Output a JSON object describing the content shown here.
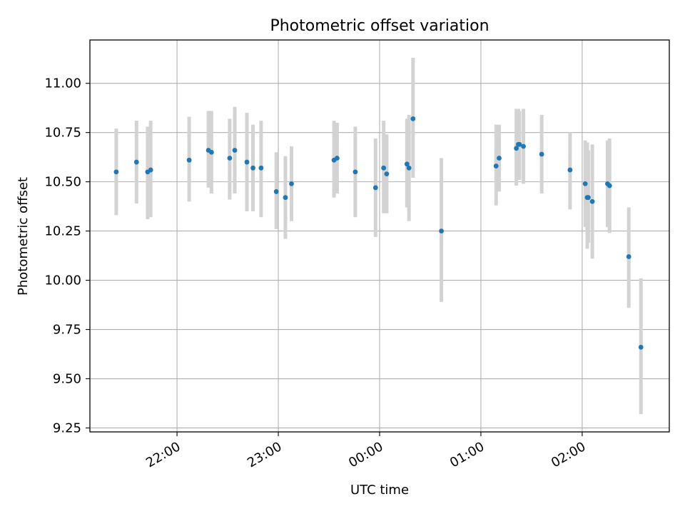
{
  "chart_data": {
    "type": "scatter",
    "title": "Photometric offset variation",
    "xlabel": "UTC time",
    "ylabel": "Photometric offset",
    "x_unit": "UTC time (HH:MM, hours past 00:00 of second day; negative = previous evening)",
    "x_ticks": [
      {
        "value": -2.0,
        "label": "22:00"
      },
      {
        "value": -1.0,
        "label": "23:00"
      },
      {
        "value": 0.0,
        "label": "00:00"
      },
      {
        "value": 1.0,
        "label": "01:00"
      },
      {
        "value": 2.0,
        "label": "02:00"
      }
    ],
    "y_ticks": [
      {
        "value": 9.25,
        "label": "9.25"
      },
      {
        "value": 9.5,
        "label": "9.50"
      },
      {
        "value": 9.75,
        "label": "9.75"
      },
      {
        "value": 10.0,
        "label": "10.00"
      },
      {
        "value": 10.25,
        "label": "10.25"
      },
      {
        "value": 10.5,
        "label": "10.50"
      },
      {
        "value": 10.75,
        "label": "10.75"
      },
      {
        "value": 11.0,
        "label": "11.00"
      }
    ],
    "xlim": [
      -2.86,
      2.86
    ],
    "ylim": [
      9.23,
      11.22
    ],
    "grid": true,
    "point_color": "#1f77b4",
    "errorbar_color": "#d3d3d3",
    "series": [
      {
        "points": [
          {
            "x": -2.6,
            "y": 10.55,
            "lo": 10.33,
            "hi": 10.77
          },
          {
            "x": -2.4,
            "y": 10.6,
            "lo": 10.39,
            "hi": 10.81
          },
          {
            "x": -2.29,
            "y": 10.55,
            "lo": 10.31,
            "hi": 10.78
          },
          {
            "x": -2.26,
            "y": 10.56,
            "lo": 10.32,
            "hi": 10.81
          },
          {
            "x": -1.88,
            "y": 10.61,
            "lo": 10.4,
            "hi": 10.83
          },
          {
            "x": -1.69,
            "y": 10.66,
            "lo": 10.47,
            "hi": 10.86
          },
          {
            "x": -1.66,
            "y": 10.65,
            "lo": 10.44,
            "hi": 10.86
          },
          {
            "x": -1.48,
            "y": 10.62,
            "lo": 10.41,
            "hi": 10.82
          },
          {
            "x": -1.43,
            "y": 10.66,
            "lo": 10.44,
            "hi": 10.88
          },
          {
            "x": -1.31,
            "y": 10.6,
            "lo": 10.35,
            "hi": 10.85
          },
          {
            "x": -1.25,
            "y": 10.57,
            "lo": 10.35,
            "hi": 10.79
          },
          {
            "x": -1.17,
            "y": 10.57,
            "lo": 10.32,
            "hi": 10.81
          },
          {
            "x": -1.02,
            "y": 10.45,
            "lo": 10.26,
            "hi": 10.65
          },
          {
            "x": -0.93,
            "y": 10.42,
            "lo": 10.21,
            "hi": 10.63
          },
          {
            "x": -0.87,
            "y": 10.49,
            "lo": 10.3,
            "hi": 10.68
          },
          {
            "x": -0.45,
            "y": 10.61,
            "lo": 10.42,
            "hi": 10.81
          },
          {
            "x": -0.42,
            "y": 10.62,
            "lo": 10.44,
            "hi": 10.8
          },
          {
            "x": -0.24,
            "y": 10.55,
            "lo": 10.32,
            "hi": 10.78
          },
          {
            "x": -0.04,
            "y": 10.47,
            "lo": 10.22,
            "hi": 10.72
          },
          {
            "x": 0.04,
            "y": 10.57,
            "lo": 10.34,
            "hi": 10.81
          },
          {
            "x": 0.07,
            "y": 10.54,
            "lo": 10.34,
            "hi": 10.74
          },
          {
            "x": 0.27,
            "y": 10.59,
            "lo": 10.37,
            "hi": 10.82
          },
          {
            "x": 0.29,
            "y": 10.57,
            "lo": 10.3,
            "hi": 10.84
          },
          {
            "x": 0.33,
            "y": 10.82,
            "lo": 10.52,
            "hi": 11.13
          },
          {
            "x": 0.61,
            "y": 10.25,
            "lo": 9.89,
            "hi": 10.62
          },
          {
            "x": 1.15,
            "y": 10.58,
            "lo": 10.38,
            "hi": 10.79
          },
          {
            "x": 1.18,
            "y": 10.62,
            "lo": 10.45,
            "hi": 10.79
          },
          {
            "x": 1.35,
            "y": 10.67,
            "lo": 10.48,
            "hi": 10.87
          },
          {
            "x": 1.37,
            "y": 10.69,
            "lo": 10.52,
            "hi": 10.87
          },
          {
            "x": 1.38,
            "y": 10.69,
            "lo": 10.51,
            "hi": 10.86
          },
          {
            "x": 1.42,
            "y": 10.68,
            "lo": 10.49,
            "hi": 10.87
          },
          {
            "x": 1.6,
            "y": 10.64,
            "lo": 10.44,
            "hi": 10.84
          },
          {
            "x": 1.88,
            "y": 10.56,
            "lo": 10.36,
            "hi": 10.75
          },
          {
            "x": 2.03,
            "y": 10.49,
            "lo": 10.27,
            "hi": 10.71
          },
          {
            "x": 2.05,
            "y": 10.42,
            "lo": 10.16,
            "hi": 10.7
          },
          {
            "x": 2.06,
            "y": 10.42,
            "lo": 10.19,
            "hi": 10.66
          },
          {
            "x": 2.1,
            "y": 10.4,
            "lo": 10.11,
            "hi": 10.69
          },
          {
            "x": 2.25,
            "y": 10.49,
            "lo": 10.27,
            "hi": 10.71
          },
          {
            "x": 2.27,
            "y": 10.48,
            "lo": 10.24,
            "hi": 10.72
          },
          {
            "x": 2.46,
            "y": 10.12,
            "lo": 9.86,
            "hi": 10.37
          },
          {
            "x": 2.58,
            "y": 9.66,
            "lo": 9.32,
            "hi": 10.01
          }
        ]
      }
    ]
  }
}
